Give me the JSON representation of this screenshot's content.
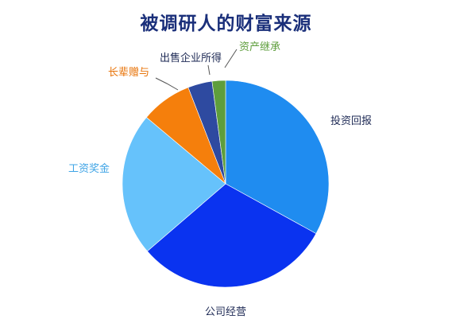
{
  "chart_data": {
    "type": "pie",
    "title": "被调研人的财富来源",
    "slices": [
      {
        "label": "投资回报",
        "value": 33,
        "color": "#1f8cf0",
        "label_color": "#1e2a55"
      },
      {
        "label": "公司经营",
        "value": 30.7,
        "color": "#0a33f0",
        "label_color": "#1e2a55"
      },
      {
        "label": "工资奖金",
        "value": 22.4,
        "color": "#66c2fb",
        "label_color": "#3fa4e6"
      },
      {
        "label": "长辈赠与",
        "value": 8,
        "color": "#f57f0c",
        "label_color": "#e8740a"
      },
      {
        "label": "出售企业所得",
        "value": 3.8,
        "color": "#2e4aa0",
        "label_color": "#1e2a55"
      },
      {
        "label": "资产继承",
        "value": 2.1,
        "color": "#5e9e3c",
        "label_color": "#5e9e3c"
      }
    ],
    "start_position": "12 o'clock",
    "direction": "clockwise",
    "legend": "none"
  },
  "colors": {
    "title": "#1a2f7a",
    "leader_line": "#555555",
    "background": "#ffffff"
  }
}
